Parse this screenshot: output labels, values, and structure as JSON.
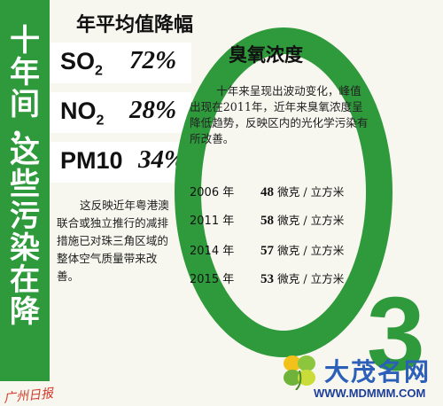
{
  "colors": {
    "accent": "#2f9a3c",
    "watermark": "#2b5fb8"
  },
  "left_title": [
    "十",
    "年",
    "间",
    "，",
    "这",
    "些",
    "污",
    "染",
    "在",
    "降"
  ],
  "pollutants": {
    "heading": "年平均值降幅",
    "items": [
      {
        "name": "SO",
        "sub": "2",
        "value": "72%"
      },
      {
        "name": "NO",
        "sub": "2",
        "value": "28%"
      },
      {
        "name": "PM10",
        "sub": "",
        "value": "34%"
      }
    ],
    "description": "这反映近年粤港澳联合或独立推行的减排措施已对珠三角区域的整体空气质量带来改善。"
  },
  "ozone": {
    "title": "臭氧浓度",
    "description": "十年来呈现出波动变化，峰值出现在2011年，近年来臭氧浓度呈降低趋势，反映区内的光化学污染有所改善。",
    "year_suffix": "年",
    "unit": "微克 / 立方米",
    "data": [
      {
        "year": "2006",
        "value": "48"
      },
      {
        "year": "2011",
        "value": "58"
      },
      {
        "year": "2014",
        "value": "57"
      },
      {
        "year": "2015",
        "value": "53"
      }
    ],
    "big_label": "3"
  },
  "watermark": {
    "name": "大茂名网",
    "url": "WWW.MDMMM.COM"
  },
  "stamp": "广州日报"
}
